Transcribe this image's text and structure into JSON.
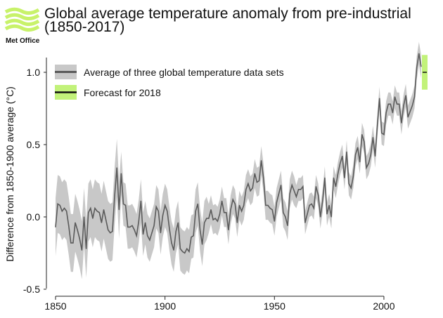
{
  "logo": {
    "text": "Met Office",
    "color": "#c8f26a"
  },
  "chart_data": {
    "type": "line",
    "title_line1": "Global average temperature anomaly from pre-industrial",
    "title_line2": "(1850-2017)",
    "xlabel": "",
    "ylabel": "Difference from 1850-1900 average (°C)",
    "xlim": [
      1850,
      2020
    ],
    "ylim": [
      -0.5,
      1.2
    ],
    "x_ticks": [
      1850,
      1900,
      1950,
      2000
    ],
    "y_ticks": [
      -0.5,
      0.0,
      0.5,
      1.0
    ],
    "y_tick_labels": [
      "-0.5",
      "0.0",
      "0.5",
      "1.0"
    ],
    "grid": false,
    "legend_placement": "top-left",
    "legend": [
      {
        "label": "Average of three global temperature data sets"
      },
      {
        "label": "Forecast for 2018"
      }
    ],
    "colors": {
      "line": "#5a5a5a",
      "band": "#c8c8c8",
      "forecast": "#c2f27a",
      "forecast_line": "#111111"
    },
    "series": {
      "start_year": 1850,
      "values": [
        -0.07,
        0.09,
        0.08,
        0.04,
        0.06,
        0.04,
        -0.06,
        -0.18,
        -0.18,
        -0.04,
        -0.09,
        -0.15,
        -0.23,
        0.0,
        -0.22,
        0.03,
        0.06,
        -0.01,
        0.06,
        0.04,
        0.03,
        -0.04,
        0.05,
        -0.02,
        -0.09,
        -0.11,
        -0.1,
        0.15,
        0.34,
        0.05,
        0.3,
        0.09,
        0.08,
        -0.07,
        -0.07,
        -0.06,
        -0.09,
        -0.13,
        -0.03,
        0.11,
        -0.12,
        -0.04,
        -0.13,
        -0.16,
        -0.11,
        -0.06,
        0.07,
        0.04,
        -0.11,
        0.01,
        0.08,
        0.04,
        -0.08,
        -0.18,
        -0.23,
        -0.1,
        -0.04,
        -0.22,
        -0.24,
        -0.25,
        -0.22,
        -0.24,
        -0.14,
        -0.13,
        0.04,
        0.09,
        -0.09,
        -0.19,
        -0.04,
        -0.01,
        -0.01,
        0.05,
        -0.02,
        -0.01,
        -0.03,
        0.02,
        0.11,
        0.03,
        0.03,
        -0.09,
        0.05,
        0.12,
        0.09,
        -0.04,
        0.08,
        0.04,
        0.08,
        0.19,
        0.23,
        0.18,
        0.2,
        0.3,
        0.24,
        0.25,
        0.39,
        0.27,
        0.08,
        0.08,
        0.06,
        0.05,
        -0.03,
        0.1,
        0.16,
        0.22,
        0.03,
        0.0,
        -0.06,
        0.16,
        0.22,
        0.18,
        0.14,
        0.19,
        0.19,
        0.21,
        -0.04,
        0.02,
        0.08,
        0.09,
        0.06,
        0.21,
        0.15,
        0.0,
        0.11,
        0.27,
        0.02,
        0.08,
        0.0,
        0.27,
        0.21,
        0.3,
        0.37,
        0.42,
        0.27,
        0.45,
        0.23,
        0.2,
        0.28,
        0.43,
        0.48,
        0.38,
        0.57,
        0.52,
        0.34,
        0.37,
        0.43,
        0.55,
        0.42,
        0.63,
        0.82,
        0.58,
        0.57,
        0.72,
        0.78,
        0.78,
        0.72,
        0.83,
        0.78,
        0.78,
        0.65,
        0.77,
        0.84,
        0.69,
        0.73,
        0.77,
        0.83,
        1.03,
        1.13,
        1.04
      ],
      "uncertainty_halfwidth": [
        {
          "from": 1850,
          "to": 1879,
          "value": 0.2
        },
        {
          "from": 1880,
          "to": 1919,
          "value": 0.15
        },
        {
          "from": 1920,
          "to": 1959,
          "value": 0.1
        },
        {
          "from": 1960,
          "to": 2017,
          "value": 0.08
        }
      ]
    },
    "forecast": {
      "year": 2018,
      "central": 1.0,
      "low": 0.88,
      "high": 1.12
    }
  }
}
